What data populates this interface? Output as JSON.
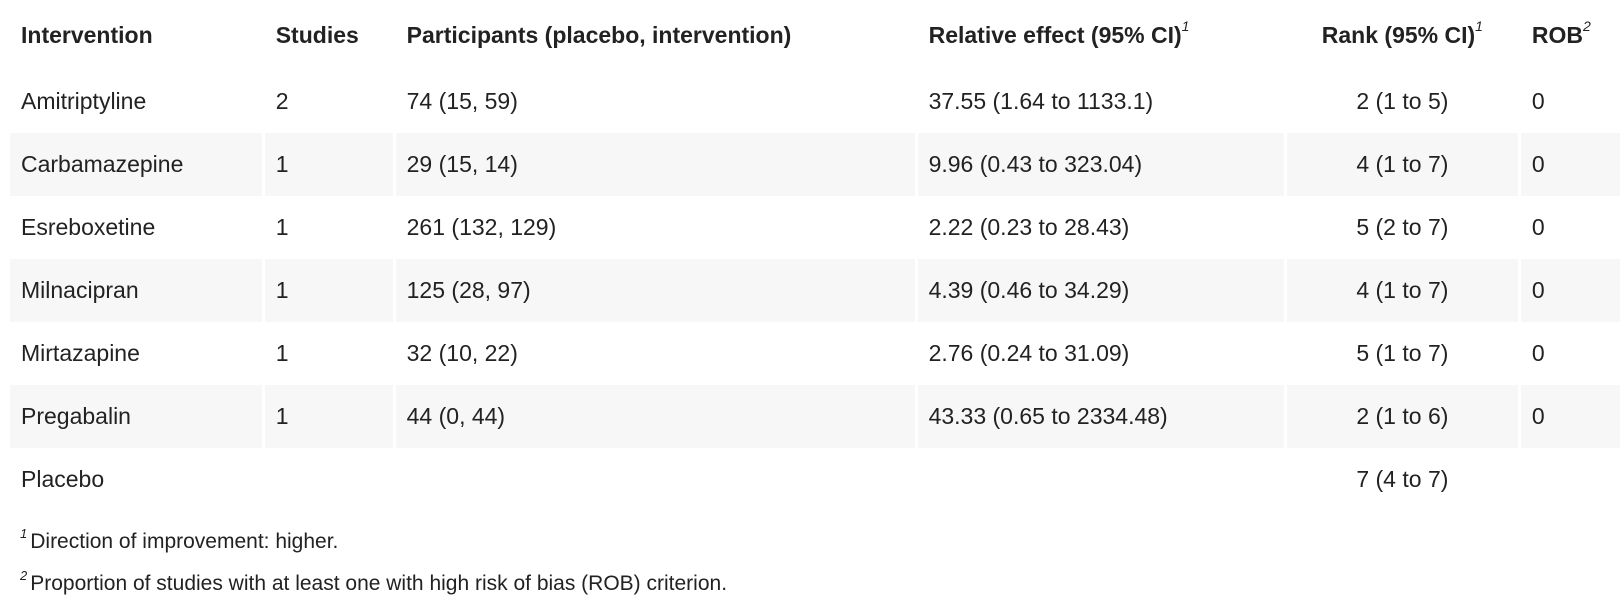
{
  "table": {
    "headers": [
      {
        "label": "Intervention",
        "sup": ""
      },
      {
        "label": "Studies",
        "sup": ""
      },
      {
        "label": "Participants (placebo, intervention)",
        "sup": ""
      },
      {
        "label": "Relative effect (95% CI)",
        "sup": "1"
      },
      {
        "label": "Rank (95% CI)",
        "sup": "1"
      },
      {
        "label": "ROB",
        "sup": "2"
      }
    ],
    "rows": [
      {
        "intervention": "Amitriptyline",
        "studies": "2",
        "participants": "74 (15, 59)",
        "effect": "37.55 (1.64 to 1133.1)",
        "rank": "2 (1 to 5)",
        "rob": "0"
      },
      {
        "intervention": "Carbamazepine",
        "studies": "1",
        "participants": "29 (15, 14)",
        "effect": "9.96 (0.43 to 323.04)",
        "rank": "4 (1 to 7)",
        "rob": "0"
      },
      {
        "intervention": "Esreboxetine",
        "studies": "1",
        "participants": "261 (132, 129)",
        "effect": "2.22 (0.23 to 28.43)",
        "rank": "5 (2 to 7)",
        "rob": "0"
      },
      {
        "intervention": "Milnacipran",
        "studies": "1",
        "participants": "125 (28, 97)",
        "effect": "4.39 (0.46 to 34.29)",
        "rank": "4 (1 to 7)",
        "rob": "0"
      },
      {
        "intervention": "Mirtazapine",
        "studies": "1",
        "participants": "32 (10, 22)",
        "effect": "2.76 (0.24 to 31.09)",
        "rank": "5 (1 to 7)",
        "rob": "0"
      },
      {
        "intervention": "Pregabalin",
        "studies": "1",
        "participants": "44 (0, 44)",
        "effect": "43.33 (0.65 to 2334.48)",
        "rank": "2 (1 to 6)",
        "rob": "0"
      },
      {
        "intervention": "Placebo",
        "studies": "",
        "participants": "",
        "effect": "",
        "rank": "7 (4 to 7)",
        "rob": ""
      }
    ]
  },
  "footnotes": [
    {
      "marker": "1",
      "text": "Direction of improvement: higher."
    },
    {
      "marker": "2",
      "text": "Proportion of studies with at least one with high risk of bias (ROB) criterion."
    }
  ]
}
